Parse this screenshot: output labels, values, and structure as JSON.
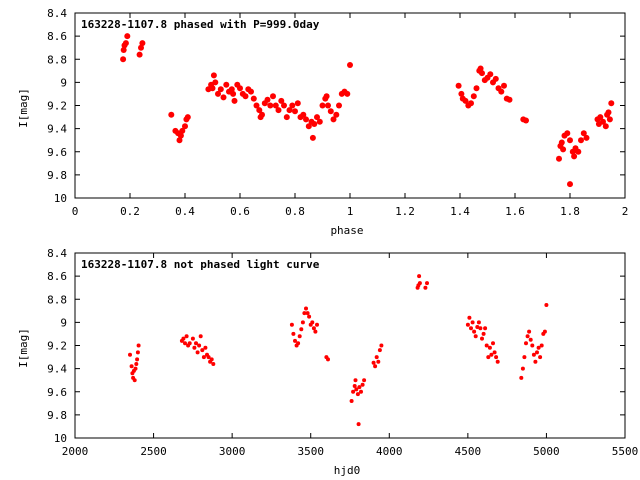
{
  "chart_data": [
    {
      "type": "scatter",
      "title": "163228-1107.8 phased with P=999.0day",
      "xlabel": "phase",
      "ylabel": "I[mag]",
      "xlim": [
        0,
        2
      ],
      "ylim": [
        10,
        8.4
      ],
      "y_inverted": true,
      "xticks": [
        "0",
        "0.2",
        "0.4",
        "0.6",
        "0.8",
        "1",
        "1.2",
        "1.4",
        "1.6",
        "1.8",
        "2"
      ],
      "yticks": [
        "8.4",
        "8.6",
        "8.8",
        "9",
        "9.2",
        "9.4",
        "9.6",
        "9.8",
        "10"
      ],
      "marker_color": "#ff0000",
      "grid": false,
      "series": [
        {
          "points": [
            [
              0.175,
              8.8
            ],
            [
              0.177,
              8.72
            ],
            [
              0.18,
              8.68
            ],
            [
              0.185,
              8.66
            ],
            [
              0.19,
              8.6
            ],
            [
              0.235,
              8.76
            ],
            [
              0.24,
              8.7
            ],
            [
              0.245,
              8.66
            ],
            [
              0.35,
              9.28
            ],
            [
              0.365,
              9.42
            ],
            [
              0.375,
              9.44
            ],
            [
              0.38,
              9.5
            ],
            [
              0.385,
              9.46
            ],
            [
              0.39,
              9.42
            ],
            [
              0.4,
              9.38
            ],
            [
              0.405,
              9.32
            ],
            [
              0.41,
              9.3
            ],
            [
              0.485,
              9.06
            ],
            [
              0.495,
              9.02
            ],
            [
              0.5,
              9.05
            ],
            [
              0.505,
              8.94
            ],
            [
              0.51,
              9.0
            ],
            [
              0.52,
              9.1
            ],
            [
              0.53,
              9.06
            ],
            [
              0.54,
              9.13
            ],
            [
              0.55,
              9.02
            ],
            [
              0.56,
              9.08
            ],
            [
              0.57,
              9.06
            ],
            [
              0.575,
              9.1
            ],
            [
              0.58,
              9.16
            ],
            [
              0.59,
              9.02
            ],
            [
              0.6,
              9.05
            ],
            [
              0.61,
              9.1
            ],
            [
              0.62,
              9.12
            ],
            [
              0.63,
              9.06
            ],
            [
              0.64,
              9.08
            ],
            [
              0.65,
              9.14
            ],
            [
              0.66,
              9.2
            ],
            [
              0.67,
              9.24
            ],
            [
              0.675,
              9.3
            ],
            [
              0.68,
              9.28
            ],
            [
              0.69,
              9.18
            ],
            [
              0.7,
              9.15
            ],
            [
              0.71,
              9.2
            ],
            [
              0.72,
              9.12
            ],
            [
              0.73,
              9.2
            ],
            [
              0.74,
              9.24
            ],
            [
              0.75,
              9.16
            ],
            [
              0.76,
              9.2
            ],
            [
              0.77,
              9.3
            ],
            [
              0.78,
              9.24
            ],
            [
              0.79,
              9.2
            ],
            [
              0.8,
              9.25
            ],
            [
              0.81,
              9.18
            ],
            [
              0.82,
              9.3
            ],
            [
              0.83,
              9.28
            ],
            [
              0.84,
              9.32
            ],
            [
              0.85,
              9.38
            ],
            [
              0.86,
              9.34
            ],
            [
              0.865,
              9.48
            ],
            [
              0.87,
              9.36
            ],
            [
              0.88,
              9.3
            ],
            [
              0.89,
              9.34
            ],
            [
              0.9,
              9.2
            ],
            [
              0.91,
              9.14
            ],
            [
              0.915,
              9.12
            ],
            [
              0.92,
              9.2
            ],
            [
              0.93,
              9.25
            ],
            [
              0.94,
              9.32
            ],
            [
              0.95,
              9.28
            ],
            [
              0.96,
              9.2
            ],
            [
              0.97,
              9.1
            ],
            [
              0.98,
              9.08
            ],
            [
              0.99,
              9.1
            ],
            [
              1.0,
              8.85
            ],
            [
              1.395,
              9.03
            ],
            [
              1.405,
              9.1
            ],
            [
              1.41,
              9.14
            ],
            [
              1.42,
              9.16
            ],
            [
              1.43,
              9.2
            ],
            [
              1.44,
              9.18
            ],
            [
              1.45,
              9.12
            ],
            [
              1.46,
              9.05
            ],
            [
              1.47,
              8.9
            ],
            [
              1.475,
              8.88
            ],
            [
              1.48,
              8.92
            ],
            [
              1.49,
              8.98
            ],
            [
              1.5,
              8.96
            ],
            [
              1.51,
              8.93
            ],
            [
              1.52,
              9.0
            ],
            [
              1.53,
              8.97
            ],
            [
              1.54,
              9.05
            ],
            [
              1.55,
              9.08
            ],
            [
              1.56,
              9.03
            ],
            [
              1.57,
              9.14
            ],
            [
              1.58,
              9.15
            ],
            [
              1.63,
              9.32
            ],
            [
              1.64,
              9.33
            ],
            [
              1.76,
              9.66
            ],
            [
              1.765,
              9.55
            ],
            [
              1.77,
              9.52
            ],
            [
              1.775,
              9.58
            ],
            [
              1.78,
              9.46
            ],
            [
              1.79,
              9.44
            ],
            [
              1.8,
              9.5
            ],
            [
              1.81,
              9.6
            ],
            [
              1.815,
              9.64
            ],
            [
              1.82,
              9.57
            ],
            [
              1.83,
              9.6
            ],
            [
              1.84,
              9.5
            ],
            [
              1.85,
              9.44
            ],
            [
              1.86,
              9.48
            ],
            [
              1.8,
              9.88
            ],
            [
              1.9,
              9.32
            ],
            [
              1.905,
              9.36
            ],
            [
              1.91,
              9.3
            ],
            [
              1.92,
              9.34
            ],
            [
              1.93,
              9.38
            ],
            [
              1.935,
              9.28
            ],
            [
              1.94,
              9.26
            ],
            [
              1.945,
              9.32
            ],
            [
              1.95,
              9.18
            ]
          ]
        }
      ]
    },
    {
      "type": "scatter",
      "title": "163228-1107.8 not phased light curve",
      "xlabel": "hjd0",
      "ylabel": "I[mag]",
      "xlim": [
        2000,
        5500
      ],
      "ylim": [
        10,
        8.4
      ],
      "y_inverted": true,
      "xticks": [
        "2000",
        "2500",
        "3000",
        "3500",
        "4000",
        "4500",
        "5000",
        "5500"
      ],
      "yticks": [
        "8.4",
        "8.6",
        "8.8",
        "9",
        "9.2",
        "9.4",
        "9.6",
        "9.8",
        "10"
      ],
      "marker_color": "#ff0000",
      "grid": false,
      "series": [
        {
          "points": [
            [
              2350,
              9.28
            ],
            [
              2360,
              9.38
            ],
            [
              2365,
              9.44
            ],
            [
              2370,
              9.48
            ],
            [
              2375,
              9.42
            ],
            [
              2380,
              9.5
            ],
            [
              2385,
              9.4
            ],
            [
              2390,
              9.36
            ],
            [
              2395,
              9.32
            ],
            [
              2400,
              9.26
            ],
            [
              2405,
              9.2
            ],
            [
              2680,
              9.16
            ],
            [
              2690,
              9.14
            ],
            [
              2700,
              9.18
            ],
            [
              2710,
              9.12
            ],
            [
              2720,
              9.2
            ],
            [
              2730,
              9.18
            ],
            [
              2750,
              9.14
            ],
            [
              2760,
              9.22
            ],
            [
              2770,
              9.18
            ],
            [
              2780,
              9.26
            ],
            [
              2790,
              9.2
            ],
            [
              2800,
              9.12
            ],
            [
              2810,
              9.24
            ],
            [
              2820,
              9.3
            ],
            [
              2830,
              9.22
            ],
            [
              2840,
              9.28
            ],
            [
              2850,
              9.3
            ],
            [
              2860,
              9.34
            ],
            [
              2870,
              9.32
            ],
            [
              2880,
              9.36
            ],
            [
              3380,
              9.02
            ],
            [
              3390,
              9.1
            ],
            [
              3400,
              9.16
            ],
            [
              3410,
              9.2
            ],
            [
              3420,
              9.18
            ],
            [
              3430,
              9.12
            ],
            [
              3440,
              9.06
            ],
            [
              3450,
              9.0
            ],
            [
              3460,
              8.92
            ],
            [
              3470,
              8.88
            ],
            [
              3480,
              8.92
            ],
            [
              3490,
              8.95
            ],
            [
              3500,
              9.02
            ],
            [
              3510,
              9.0
            ],
            [
              3520,
              9.05
            ],
            [
              3530,
              9.08
            ],
            [
              3540,
              9.02
            ],
            [
              3600,
              9.3
            ],
            [
              3610,
              9.32
            ],
            [
              3760,
              9.68
            ],
            [
              3770,
              9.6
            ],
            [
              3780,
              9.55
            ],
            [
              3785,
              9.5
            ],
            [
              3790,
              9.58
            ],
            [
              3800,
              9.62
            ],
            [
              3805,
              9.88
            ],
            [
              3810,
              9.56
            ],
            [
              3820,
              9.6
            ],
            [
              3830,
              9.54
            ],
            [
              3840,
              9.5
            ],
            [
              3900,
              9.35
            ],
            [
              3910,
              9.38
            ],
            [
              3920,
              9.3
            ],
            [
              3930,
              9.34
            ],
            [
              3940,
              9.24
            ],
            [
              3950,
              9.2
            ],
            [
              4180,
              8.7
            ],
            [
              4185,
              8.68
            ],
            [
              4190,
              8.6
            ],
            [
              4195,
              8.66
            ],
            [
              4230,
              8.7
            ],
            [
              4240,
              8.66
            ],
            [
              4500,
              9.02
            ],
            [
              4510,
              8.96
            ],
            [
              4520,
              9.05
            ],
            [
              4530,
              9.0
            ],
            [
              4540,
              9.08
            ],
            [
              4550,
              9.12
            ],
            [
              4560,
              9.04
            ],
            [
              4570,
              9.0
            ],
            [
              4580,
              9.05
            ],
            [
              4590,
              9.14
            ],
            [
              4600,
              9.1
            ],
            [
              4610,
              9.05
            ],
            [
              4620,
              9.2
            ],
            [
              4630,
              9.3
            ],
            [
              4640,
              9.22
            ],
            [
              4650,
              9.28
            ],
            [
              4660,
              9.18
            ],
            [
              4670,
              9.26
            ],
            [
              4680,
              9.3
            ],
            [
              4690,
              9.34
            ],
            [
              4840,
              9.48
            ],
            [
              4850,
              9.4
            ],
            [
              4860,
              9.3
            ],
            [
              4870,
              9.18
            ],
            [
              4880,
              9.12
            ],
            [
              4890,
              9.08
            ],
            [
              4900,
              9.15
            ],
            [
              4910,
              9.2
            ],
            [
              4920,
              9.28
            ],
            [
              4930,
              9.34
            ],
            [
              4940,
              9.26
            ],
            [
              4950,
              9.22
            ],
            [
              4960,
              9.3
            ],
            [
              4970,
              9.2
            ],
            [
              4980,
              9.1
            ],
            [
              4990,
              9.08
            ],
            [
              5000,
              8.85
            ]
          ]
        }
      ]
    }
  ]
}
